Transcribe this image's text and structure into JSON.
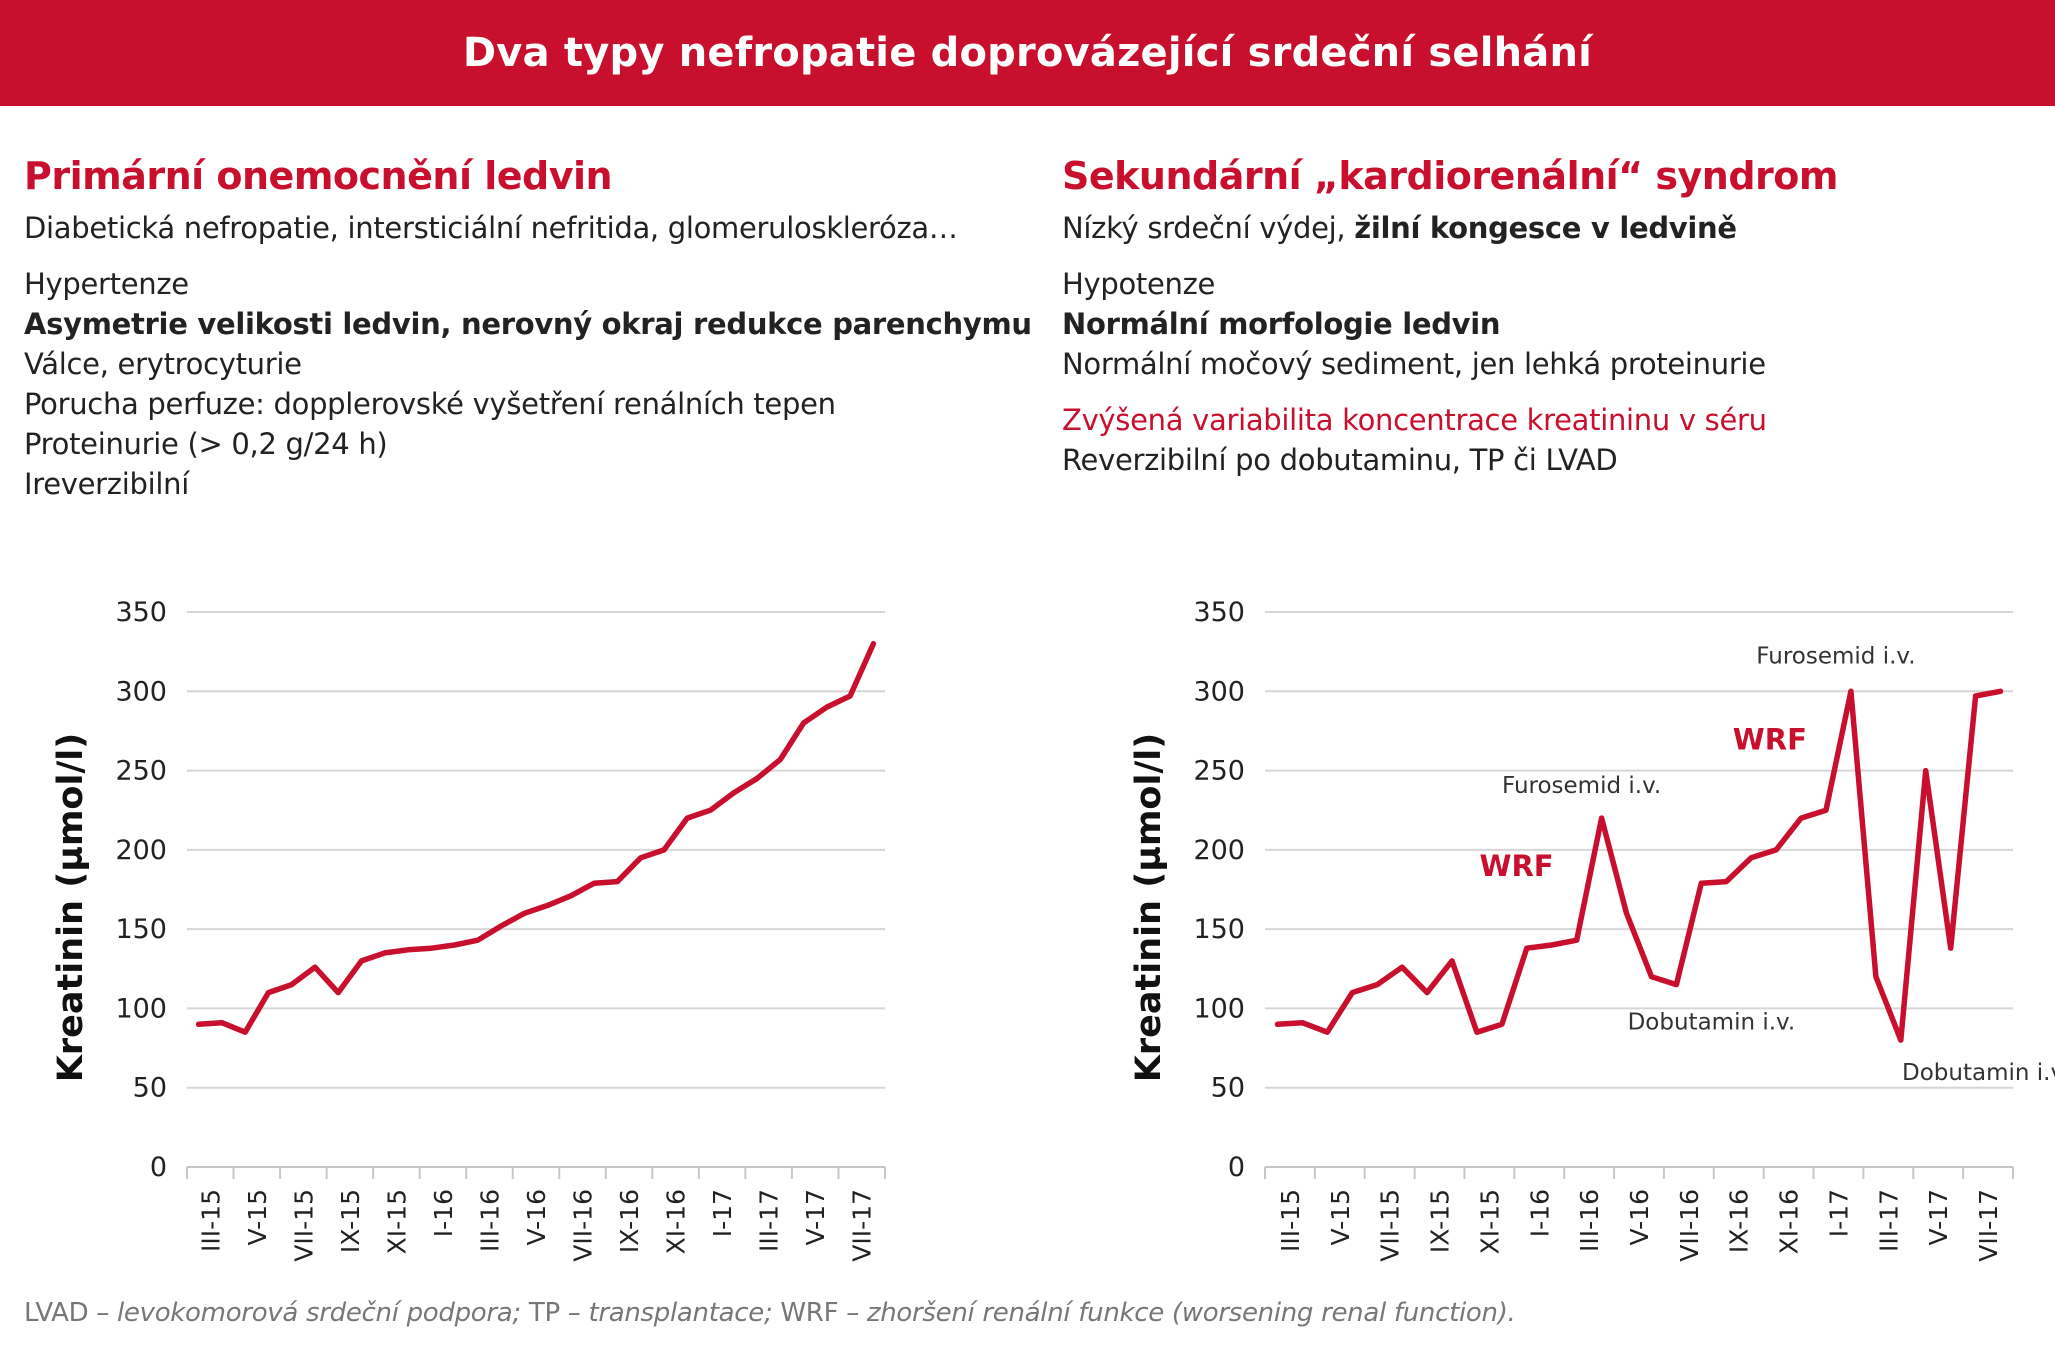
{
  "title": "Dva typy nefropatie doprovázející srdeční selhání",
  "accent_color": "#c8102e",
  "left": {
    "heading": "Primární onemocnění ledvin",
    "lines": [
      "Diabetická nefropatie, intersticiální nefritida, glomeruloskleróza…",
      "Hypertenze",
      "Asymetrie velikosti ledvin, nerovný okraj redukce parenchymu",
      "Válce, erytrocyturie",
      "Porucha perfuze: dopplerovské vyšetření renálních tepen",
      "Proteinurie (> 0,2 g/24 h)",
      "Ireverzibilní"
    ]
  },
  "right": {
    "heading": "Sekundární „kardiorenální“ syndrom",
    "line1_prefix": "Nízký srdeční výdej, ",
    "line1_bold": "žilní kongesce v ledvině",
    "lines": [
      "Hypotenze",
      "Normální morfologie ledvin",
      "Normální močový sediment, jen lehká proteinurie",
      "Zvýšená variabilita koncentrace kreatininu v séru",
      "Reverzibilní po dobutaminu, TP či LVAD"
    ]
  },
  "chart_data": [
    {
      "type": "line",
      "title": "",
      "ylabel": "Kreatinin (µmol/l)",
      "xlabel": "",
      "ylim": [
        0,
        350
      ],
      "yticks": [
        0,
        50,
        100,
        150,
        200,
        250,
        300,
        350
      ],
      "grid": true,
      "x_tick_labels": [
        "III-15",
        "V-15",
        "VII-15",
        "IX-15",
        "XI-15",
        "I-16",
        "III-16",
        "V-16",
        "VII-16",
        "IX-16",
        "XI-16",
        "I-17",
        "III-17",
        "V-17",
        "VII-17"
      ],
      "series": [
        {
          "values": [
            90,
            91,
            85,
            110,
            115,
            126,
            110,
            130,
            135,
            137,
            138,
            140,
            143,
            152,
            160,
            165,
            171,
            179,
            180,
            195,
            200,
            220,
            225,
            236,
            245,
            257,
            280,
            290,
            297,
            330
          ]
        }
      ]
    },
    {
      "type": "line",
      "title": "",
      "ylabel": "Kreatinin (µmol/l)",
      "xlabel": "",
      "ylim": [
        0,
        350
      ],
      "yticks": [
        0,
        50,
        100,
        150,
        200,
        250,
        300,
        350
      ],
      "grid": true,
      "x_tick_labels": [
        "III-15",
        "V-15",
        "VII-15",
        "IX-15",
        "XI-15",
        "I-16",
        "III-16",
        "V-16",
        "VII-16",
        "IX-16",
        "XI-16",
        "I-17",
        "III-17",
        "V-17",
        "VII-17"
      ],
      "series": [
        {
          "values": [
            90,
            91,
            85,
            110,
            115,
            126,
            110,
            130,
            85,
            90,
            138,
            140,
            143,
            220,
            160,
            120,
            115,
            179,
            180,
            195,
            200,
            220,
            225,
            300,
            120,
            80,
            250,
            138,
            297,
            300
          ]
        }
      ],
      "annotations": [
        {
          "text": "Furosemid i.v.",
          "index": 13,
          "value": 220,
          "style": "plain"
        },
        {
          "text": "WRF",
          "index": 13,
          "value": 220,
          "style": "red"
        },
        {
          "text": "Dobutamin i.v.",
          "index": 16,
          "value": 115,
          "style": "plain"
        },
        {
          "text": "Furosemid i.v.",
          "index": 23,
          "value": 300,
          "style": "plain"
        },
        {
          "text": "WRF",
          "index": 23,
          "value": 300,
          "style": "red"
        },
        {
          "text": "Dobutamin i.v.",
          "index": 25,
          "value": 80,
          "style": "plain"
        }
      ]
    }
  ],
  "footnote": {
    "parts": [
      {
        "text": "LVAD",
        "italic": false
      },
      {
        "text": " – levokomorová srdeční podpora; ",
        "italic": true
      },
      {
        "text": "TP",
        "italic": false
      },
      {
        "text": " – transplantace; ",
        "italic": true
      },
      {
        "text": "WRF",
        "italic": false
      },
      {
        "text": " – zhoršení renální funkce (worsening renal function).",
        "italic": true
      }
    ]
  }
}
